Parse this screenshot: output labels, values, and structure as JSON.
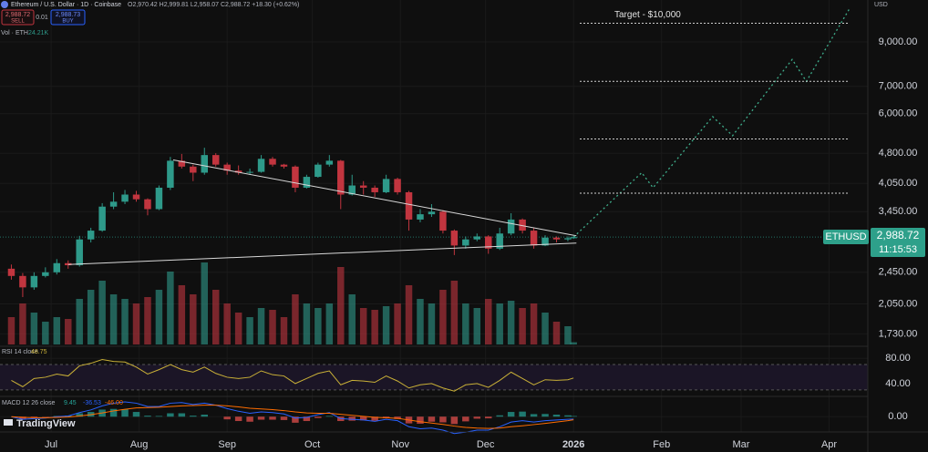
{
  "header": {
    "symbol": "Ethereum / U.S. Dollar · 1D · Coinbase",
    "ohlc": "O2,970.42 H2,999.81 L2,958.07 C2,988.72 +18.30 (+0.62%)",
    "sell_price": "2,988.72",
    "sell": "SELL",
    "spread": "0.01",
    "buy_price": "2,988.73",
    "buy": "BUY",
    "vol_label": "Vol · ETH",
    "vol_value": "24.21K",
    "currency": "USD",
    "ticker": "ETHUSD",
    "last_price": "2,988.72",
    "countdown": "11:15:53",
    "brand": "TradingView"
  },
  "chart_data": {
    "type": "candlestick",
    "log_scale": true,
    "x": [
      "2025-06-17",
      "2025-06-21",
      "2025-06-25",
      "2025-06-29",
      "2025-07-03",
      "2025-07-07",
      "2025-07-11",
      "2025-07-15",
      "2025-07-19",
      "2025-07-23",
      "2025-07-27",
      "2025-07-31",
      "2025-08-04",
      "2025-08-08",
      "2025-08-12",
      "2025-08-16",
      "2025-08-20",
      "2025-08-24",
      "2025-08-28",
      "2025-09-01",
      "2025-09-05",
      "2025-09-09",
      "2025-09-13",
      "2025-09-17",
      "2025-09-21",
      "2025-09-25",
      "2025-09-29",
      "2025-10-03",
      "2025-10-07",
      "2025-10-11",
      "2025-10-15",
      "2025-10-19",
      "2025-10-23",
      "2025-10-27",
      "2025-10-31",
      "2025-11-04",
      "2025-11-08",
      "2025-11-12",
      "2025-11-16",
      "2025-11-20",
      "2025-11-24",
      "2025-11-28",
      "2025-12-02",
      "2025-12-06",
      "2025-12-10",
      "2025-12-14",
      "2025-12-18",
      "2025-12-22",
      "2025-12-26",
      "2025-12-30",
      "2026-01-01"
    ],
    "open": [
      2500,
      2400,
      2250,
      2400,
      2450,
      2580,
      2550,
      2950,
      3100,
      3550,
      3650,
      3800,
      3700,
      3500,
      3950,
      4600,
      4450,
      4300,
      4750,
      4500,
      4350,
      4300,
      4320,
      4650,
      4500,
      4450,
      3950,
      4200,
      4500,
      4600,
      3800,
      4000,
      3950,
      3850,
      4150,
      3850,
      3300,
      3400,
      3450,
      3100,
      2850,
      2950,
      3000,
      2800,
      3050,
      3300,
      3100,
      2850,
      2980,
      2950,
      2970
    ],
    "high": [
      2560,
      2440,
      2450,
      2520,
      2640,
      2620,
      3010,
      3150,
      3620,
      3850,
      3900,
      3880,
      3720,
      4000,
      4700,
      4780,
      4500,
      4950,
      4800,
      4550,
      4480,
      4400,
      4750,
      4700,
      4520,
      4480,
      4250,
      4550,
      4750,
      4620,
      4250,
      4100,
      4000,
      4250,
      4180,
      3880,
      3500,
      3600,
      3480,
      3120,
      3000,
      3050,
      3020,
      3150,
      3420,
      3320,
      3150,
      3020,
      3000,
      3000,
      3000
    ],
    "low": [
      2350,
      2130,
      2220,
      2380,
      2420,
      2500,
      2530,
      2900,
      3080,
      3500,
      3600,
      3650,
      3380,
      3480,
      3900,
      4400,
      4100,
      4250,
      4450,
      4250,
      4250,
      4250,
      4300,
      4450,
      4400,
      3850,
      3930,
      4180,
      4450,
      3500,
      3780,
      3800,
      3750,
      3830,
      3800,
      3100,
      3250,
      3350,
      3050,
      2700,
      2800,
      2920,
      2720,
      2780,
      3020,
      3050,
      2800,
      2840,
      2900,
      2920,
      2960
    ],
    "close": [
      2400,
      2250,
      2400,
      2450,
      2580,
      2550,
      2950,
      3100,
      3550,
      3650,
      3800,
      3700,
      3500,
      3950,
      4600,
      4450,
      4300,
      4750,
      4500,
      4350,
      4300,
      4320,
      4650,
      4500,
      4450,
      3950,
      4200,
      4500,
      4600,
      3800,
      4000,
      3950,
      3850,
      4150,
      3850,
      3300,
      3400,
      3450,
      3100,
      2850,
      2950,
      3000,
      2800,
      3050,
      3300,
      3100,
      2850,
      2980,
      2950,
      2970,
      2988.72
    ],
    "volume": [
      300,
      450,
      350,
      250,
      300,
      280,
      500,
      600,
      700,
      550,
      500,
      450,
      520,
      600,
      800,
      650,
      550,
      900,
      600,
      450,
      350,
      300,
      400,
      380,
      300,
      550,
      450,
      400,
      450,
      850,
      550,
      400,
      380,
      420,
      450,
      650,
      500,
      450,
      600,
      700,
      450,
      400,
      500,
      450,
      480,
      400,
      450,
      350,
      250,
      200,
      24.21
    ],
    "vlim": [
      0,
      1000
    ],
    "up_color": "#2e9a8a",
    "down_color": "#c2353f",
    "xlim": [
      "2025-06-13",
      "2026-04-14"
    ],
    "xticks": [
      {
        "value": "2025-07-01",
        "label": "Jul"
      },
      {
        "value": "2025-08-01",
        "label": "Aug"
      },
      {
        "value": "2025-09-01",
        "label": "Sep"
      },
      {
        "value": "2025-10-01",
        "label": "Oct"
      },
      {
        "value": "2025-11-01",
        "label": "Nov"
      },
      {
        "value": "2025-12-01",
        "label": "Dec"
      },
      {
        "value": "2026-01-01",
        "label": "2026"
      },
      {
        "value": "2026-02-01",
        "label": "Feb"
      },
      {
        "value": "2026-03-01",
        "label": "Mar"
      },
      {
        "value": "2026-04-01",
        "label": "Apr"
      }
    ],
    "ylim": [
      1630,
      11400
    ],
    "yticks": [
      {
        "value": 1730,
        "label": "1,730.00"
      },
      {
        "value": 2050,
        "label": "2,050.00"
      },
      {
        "value": 2450,
        "label": "2,450.00"
      },
      {
        "value": 3450,
        "label": "3,450.00"
      },
      {
        "value": 4050,
        "label": "4,050.00"
      },
      {
        "value": 4800,
        "label": "4,800.00"
      },
      {
        "value": 6000,
        "label": "6,000.00"
      },
      {
        "value": 7000,
        "label": "7,000.00"
      },
      {
        "value": 9000,
        "label": "9,000.00"
      }
    ],
    "trendlines": [
      {
        "x": [
          "2025-08-13",
          "2026-01-02"
        ],
        "y": [
          4620,
          3010
        ]
      },
      {
        "x": [
          "2025-07-07",
          "2026-01-02"
        ],
        "y": [
          2560,
          2890
        ]
      }
    ],
    "projection": {
      "color": "#3fae8c",
      "x": [
        "2026-01-01",
        "2026-01-25",
        "2026-01-29",
        "2026-02-19",
        "2026-02-26",
        "2026-03-19",
        "2026-03-24",
        "2026-04-08"
      ],
      "y": [
        2988.72,
        4300,
        3950,
        5900,
        5300,
        8150,
        7200,
        10800
      ]
    },
    "levels": [
      10000,
      7200,
      5200,
      3830
    ],
    "target_label": "Target - $10,000",
    "rsi": {
      "name": "RSI 14 close",
      "last_label": "48.75",
      "color": "#c9b037",
      "band": [
        30,
        70
      ],
      "ylim": [
        24,
        96
      ],
      "yticks": [
        {
          "value": 40,
          "label": "40.00"
        },
        {
          "value": 80,
          "label": "80.00"
        }
      ],
      "values": [
        45,
        35,
        48,
        50,
        55,
        52,
        68,
        72,
        78,
        75,
        74,
        66,
        55,
        62,
        70,
        62,
        58,
        66,
        56,
        50,
        48,
        50,
        60,
        54,
        52,
        40,
        48,
        56,
        60,
        38,
        45,
        44,
        42,
        52,
        44,
        33,
        38,
        40,
        33,
        28,
        38,
        40,
        34,
        45,
        58,
        48,
        38,
        46,
        45,
        46,
        48.75
      ]
    },
    "macd": {
      "name": "MACD 12 26 close",
      "ylim": [
        -200,
        260
      ],
      "yticks": [
        {
          "value": 0,
          "label": "0.00"
        }
      ],
      "histogram": {
        "color_up": "#26a69a",
        "color_down": "#ef5350",
        "last_label": "9.45",
        "values": [
          0,
          -30,
          -15,
          -5,
          10,
          15,
          50,
          70,
          105,
          115,
          110,
          70,
          15,
          10,
          50,
          50,
          15,
          30,
          0,
          -40,
          -65,
          -75,
          -45,
          -45,
          -50,
          -90,
          -65,
          -20,
          10,
          -65,
          -60,
          -55,
          -60,
          -25,
          -35,
          -100,
          -105,
          -75,
          -85,
          -110,
          -70,
          -30,
          -25,
          20,
          70,
          75,
          38,
          40,
          30,
          20,
          9.45
        ]
      },
      "macd_line": {
        "color": "#2962ff",
        "last_label": "-36.53",
        "values": [
          0,
          -40,
          -30,
          -20,
          0,
          10,
          60,
          100,
          160,
          200,
          220,
          200,
          150,
          150,
          200,
          210,
          180,
          200,
          170,
          120,
          80,
          50,
          70,
          60,
          40,
          -20,
          -10,
          30,
          60,
          -30,
          -40,
          -50,
          -70,
          -40,
          -60,
          -150,
          -180,
          -170,
          -200,
          -250,
          -230,
          -200,
          -200,
          -150,
          -80,
          -60,
          -80,
          -60,
          -50,
          -40,
          -36.53
        ]
      },
      "signal": {
        "color": "#ff6d00",
        "last_label": "-46.00",
        "values": [
          0,
          -10,
          -15,
          -15,
          -10,
          -5,
          10,
          30,
          55,
          85,
          110,
          130,
          135,
          140,
          150,
          160,
          165,
          170,
          170,
          160,
          145,
          125,
          115,
          105,
          90,
          70,
          55,
          50,
          50,
          35,
          20,
          5,
          -10,
          -15,
          -25,
          -50,
          -75,
          -95,
          -115,
          -140,
          -160,
          -170,
          -175,
          -170,
          -150,
          -135,
          -118,
          -100,
          -80,
          -60,
          -46
        ]
      }
    }
  }
}
